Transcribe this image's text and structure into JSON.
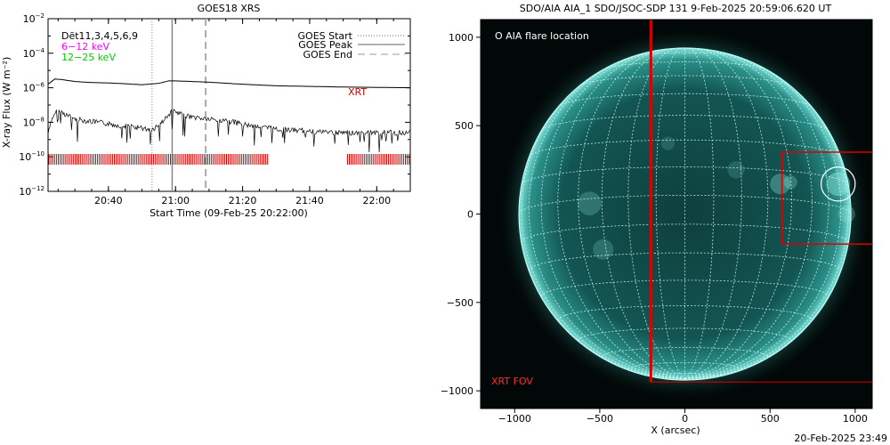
{
  "chart_data": [
    {
      "type": "line",
      "title": "GOES18 XRS",
      "xlabel": "Start Time (09-Feb-25 20:22:00)",
      "ylabel": "X-ray Flux (W m⁻²)",
      "y_scale": "log",
      "ylim": [
        1e-12,
        0.01
      ],
      "xlim": [
        "20:22",
        "22:10"
      ],
      "x_ticks": [
        "20:40",
        "21:00",
        "21:20",
        "21:40",
        "22:00"
      ],
      "y_ticks": [
        {
          "value": 0.01,
          "base": "10",
          "exp": "−2"
        },
        {
          "value": 0.0001,
          "base": "10",
          "exp": "−4"
        },
        {
          "value": 1e-06,
          "base": "10",
          "exp": "−6"
        },
        {
          "value": 1e-08,
          "base": "10",
          "exp": "−8"
        },
        {
          "value": 1e-10,
          "base": "10",
          "exp": "−10"
        },
        {
          "value": 1e-12,
          "base": "10",
          "exp": "−12"
        }
      ],
      "detector_label": "Dēt11,3,4,5,6,9",
      "channel_labels": [
        {
          "text": "6−12 keV",
          "color": "#ff00ff"
        },
        {
          "text": "12−25 keV",
          "color": "#00cc00"
        }
      ],
      "legend": [
        {
          "text": "GOES Start",
          "style": "dotted",
          "time": "20:53"
        },
        {
          "text": "GOES Peak",
          "style": "solid",
          "time": "20:59"
        },
        {
          "text": "GOES End",
          "style": "dashed",
          "time": "21:09"
        }
      ],
      "legend_position": "top-right",
      "xrt_label": "XRT",
      "xrt_color": "#cc0000",
      "series": [
        {
          "id": "long",
          "x": [
            "20:22",
            "20:24",
            "20:26",
            "20:30",
            "20:35",
            "20:40",
            "20:45",
            "20:50",
            "20:55",
            "20:58",
            "21:00",
            "21:05",
            "21:10",
            "21:20",
            "21:30",
            "21:40",
            "21:50",
            "22:00",
            "22:10"
          ],
          "y": [
            1.6e-06,
            3.2e-06,
            3e-06,
            2.3e-06,
            2e-06,
            1.9e-06,
            1.7e-06,
            1.5e-06,
            1.8e-06,
            2.5e-06,
            2.5e-06,
            2.3e-06,
            2.1e-06,
            1.6e-06,
            1.3e-06,
            1.2e-06,
            1.1e-06,
            1.05e-06,
            1e-06
          ]
        },
        {
          "id": "short",
          "x": [
            "20:22",
            "20:23",
            "20:24",
            "20:25",
            "20:27",
            "20:30",
            "20:35",
            "20:40",
            "20:45",
            "20:50",
            "20:53",
            "20:56",
            "20:59",
            "21:01",
            "21:05",
            "21:10",
            "21:15",
            "21:20",
            "21:30",
            "21:40",
            "21:50",
            "22:00",
            "22:10"
          ],
          "y": [
            2e-09,
            1.2e-08,
            3.5e-08,
            5e-08,
            3e-08,
            1.5e-08,
            1.1e-08,
            8e-09,
            6e-09,
            4.5e-09,
            3.5e-09,
            1e-08,
            4.5e-08,
            3e-08,
            2e-08,
            1.5e-08,
            1.2e-08,
            8e-09,
            4e-09,
            3e-09,
            2.5e-09,
            2.5e-09,
            2.5e-09
          ]
        }
      ],
      "xrt_coverage": [
        [
          "20:22",
          "21:28"
        ],
        [
          "21:51",
          "22:10"
        ]
      ]
    },
    {
      "type": "image",
      "title": "SDO/AIA AIA_1 SDO/JSOC-SDP 131  9-Feb-2025 20:59:06.620 UT",
      "xlabel": "X (arcsec)",
      "ylabel": "",
      "xlim": [
        -1200,
        1100
      ],
      "ylim": [
        -1100,
        1100
      ],
      "x_ticks": [
        {
          "value": -1000,
          "label": "−1000"
        },
        {
          "value": -500,
          "label": "−500"
        },
        {
          "value": 0,
          "label": "0"
        },
        {
          "value": 500,
          "label": "500"
        },
        {
          "value": 1000,
          "label": "1000"
        }
      ],
      "y_ticks": [
        {
          "value": 1000,
          "label": "1000"
        },
        {
          "value": 500,
          "label": "500"
        },
        {
          "value": 0,
          "label": "0"
        },
        {
          "value": -500,
          "label": "−500"
        },
        {
          "value": -1000,
          "label": "−1000"
        }
      ],
      "solar_radius_arcsec": 975,
      "disk_color": "#0f4a48",
      "limb_color": "#bff7f2",
      "flare_legend": "O AIA flare location",
      "flare_location": {
        "x": 900,
        "y": 170,
        "radius": 100
      },
      "xrt_fov_label": "XRT FOV",
      "xrt_fov_color": "#dd0000",
      "xrt_fov": {
        "x_min": -200,
        "x_max": 1100,
        "y_min": -950,
        "y_max": 1100
      },
      "xrt_sub_fov": {
        "x_min": 570,
        "x_max": 1100,
        "y_min": -170,
        "y_max": 350
      },
      "timestamp": "20-Feb-2025 23:49"
    }
  ]
}
